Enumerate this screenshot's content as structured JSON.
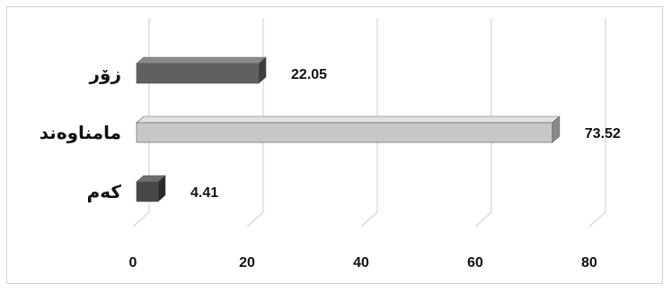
{
  "chart_data": {
    "type": "bar",
    "orientation": "horizontal",
    "style": "3d",
    "categories": [
      "زۆر",
      "مامناوەند",
      "کەم"
    ],
    "values": [
      22.05,
      73.52,
      4.41
    ],
    "data_labels": [
      "22.05",
      "73.52",
      "4.41"
    ],
    "xlim": [
      0,
      80
    ],
    "x_ticks": [
      0,
      20,
      40,
      60,
      80
    ],
    "x_tick_labels": [
      "0",
      "20",
      "40",
      "60",
      "80"
    ],
    "grid": true,
    "legend": "none",
    "colors": {
      "bars": [
        "#606060",
        "#c8c8c8",
        "#474747"
      ],
      "bars_side": [
        "#3c3c3c",
        "#8a8a8a",
        "#2a2a2a"
      ],
      "bars_top": [
        "#8a8a8a",
        "#e2e2e2",
        "#6e6e6e"
      ],
      "gridline": "#d6d6d6"
    }
  }
}
